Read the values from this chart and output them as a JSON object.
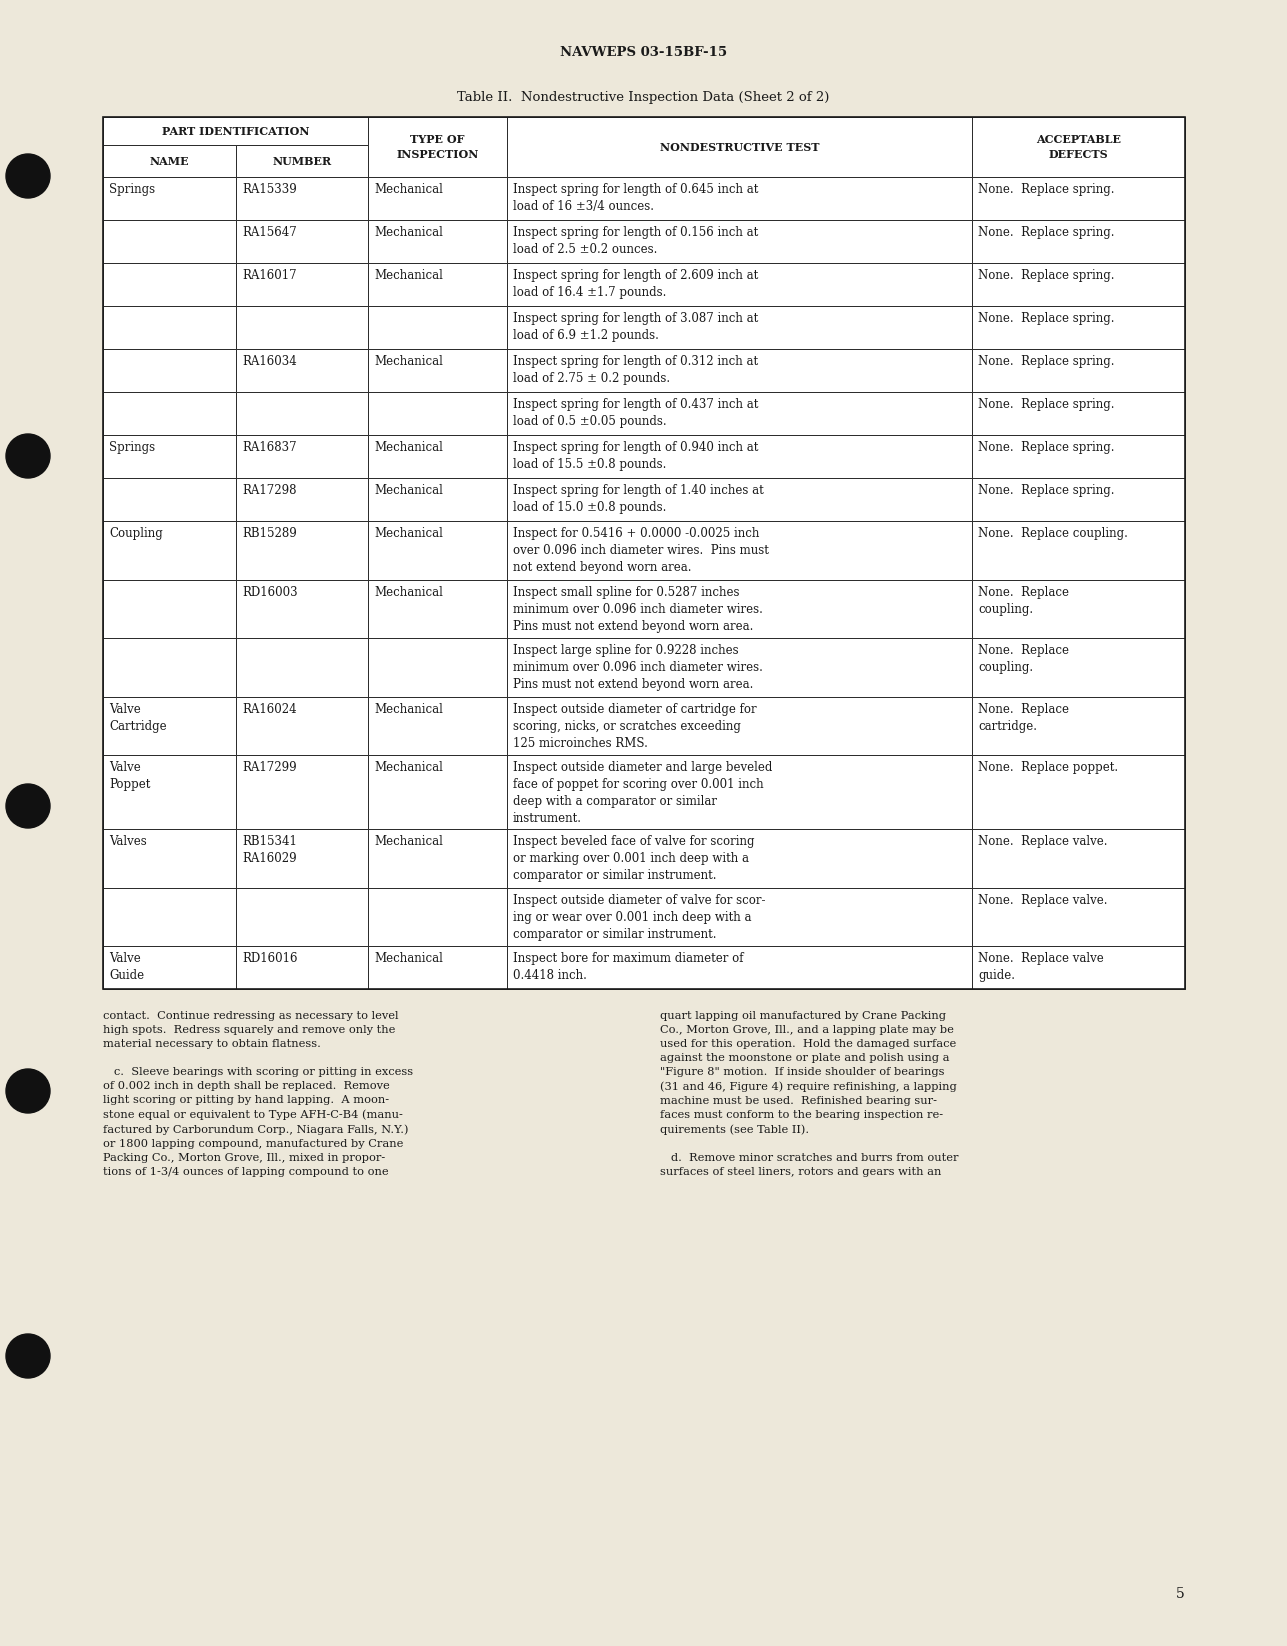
{
  "page_header": "NAVWEPS 03-15BF-15",
  "table_title": "Table II.  Nondestructive Inspection Data (Sheet 2 of 2)",
  "bg_color": "#ede8da",
  "text_color": "#1a1a1a",
  "rows": [
    {
      "name": "Springs",
      "number": "RA15339",
      "inspection": "Mechanical",
      "test": "Inspect spring for length of 0.645 inch at\nload of 16 ±3/4 ounces.",
      "defects": "None.  Replace spring."
    },
    {
      "name": "",
      "number": "RA15647",
      "inspection": "Mechanical",
      "test": "Inspect spring for length of 0.156 inch at\nload of 2.5 ±0.2 ounces.",
      "defects": "None.  Replace spring."
    },
    {
      "name": "",
      "number": "RA16017",
      "inspection": "Mechanical",
      "test": "Inspect spring for length of 2.609 inch at\nload of 16.4 ±1.7 pounds.",
      "defects": "None.  Replace spring."
    },
    {
      "name": "",
      "number": "",
      "inspection": "",
      "test": "Inspect spring for length of 3.087 inch at\nload of 6.9 ±1.2 pounds.",
      "defects": "None.  Replace spring."
    },
    {
      "name": "",
      "number": "RA16034",
      "inspection": "Mechanical",
      "test": "Inspect spring for length of 0.312 inch at\nload of 2.75 ± 0.2 pounds.",
      "defects": "None.  Replace spring."
    },
    {
      "name": "",
      "number": "",
      "inspection": "",
      "test": "Inspect spring for length of 0.437 inch at\nload of 0.5 ±0.05 pounds.",
      "defects": "None.  Replace spring."
    },
    {
      "name": "Springs",
      "number": "RA16837",
      "inspection": "Mechanical",
      "test": "Inspect spring for length of 0.940 inch at\nload of 15.5 ±0.8 pounds.",
      "defects": "None.  Replace spring."
    },
    {
      "name": "",
      "number": "RA17298",
      "inspection": "Mechanical",
      "test": "Inspect spring for length of 1.40 inches at\nload of 15.0 ±0.8 pounds.",
      "defects": "None.  Replace spring."
    },
    {
      "name": "Coupling",
      "number": "RB15289",
      "inspection": "Mechanical",
      "test": "Inspect for 0.5416 + 0.0000 -0.0025 inch\nover 0.096 inch diameter wires.  Pins must\nnot extend beyond worn area.",
      "defects": "None.  Replace coupling."
    },
    {
      "name": "",
      "number": "RD16003",
      "inspection": "Mechanical",
      "test": "Inspect small spline for 0.5287 inches\nminimum over 0.096 inch diameter wires.\nPins must not extend beyond worn area.",
      "defects": "None.  Replace\ncoupling."
    },
    {
      "name": "",
      "number": "",
      "inspection": "",
      "test": "Inspect large spline for 0.9228 inches\nminimum over 0.096 inch diameter wires.\nPins must not extend beyond worn area.",
      "defects": "None.  Replace\ncoupling."
    },
    {
      "name": "Valve\nCartridge",
      "number": "RA16024",
      "inspection": "Mechanical",
      "test": "Inspect outside diameter of cartridge for\nscoring, nicks, or scratches exceeding\n125 microinches RMS.",
      "defects": "None.  Replace\ncartridge."
    },
    {
      "name": "Valve\nPoppet",
      "number": "RA17299",
      "inspection": "Mechanical",
      "test": "Inspect outside diameter and large beveled\nface of poppet for scoring over 0.001 inch\ndeep with a comparator or similar\ninstrument.",
      "defects": "None.  Replace poppet."
    },
    {
      "name": "Valves",
      "number": "RB15341\nRA16029",
      "inspection": "Mechanical",
      "test": "Inspect beveled face of valve for scoring\nor marking over 0.001 inch deep with a\ncomparator or similar instrument.",
      "defects": "None.  Replace valve."
    },
    {
      "name": "",
      "number": "",
      "inspection": "",
      "test": "Inspect outside diameter of valve for scor-\ning or wear over 0.001 inch deep with a\ncomparator or similar instrument.",
      "defects": "None.  Replace valve."
    },
    {
      "name": "Valve\nGuide",
      "number": "RD16016",
      "inspection": "Mechanical",
      "test": "Inspect bore for maximum diameter of\n0.4418 inch.",
      "defects": "None.  Replace valve\nguide."
    }
  ],
  "footer_left": "contact.  Continue redressing as necessary to level\nhigh spots.  Redress squarely and remove only the\nmaterial necessary to obtain flatness.\n\n   c.  Sleeve bearings with scoring or pitting in excess\nof 0.002 inch in depth shall be replaced.  Remove\nlight scoring or pitting by hand lapping.  A moon-\nstone equal or equivalent to Type AFH-C-B4 (manu-\nfactured by Carborundum Corp., Niagara Falls, N.Y.)\nor 1800 lapping compound, manufactured by Crane\nPacking Co., Morton Grove, Ill., mixed in propor-\ntions of 1-3/4 ounces of lapping compound to one",
  "footer_right": "quart lapping oil manufactured by Crane Packing\nCo., Morton Grove, Ill., and a lapping plate may be\nused for this operation.  Hold the damaged surface\nagainst the moonstone or plate and polish using a\n\"Figure 8\" motion.  If inside shoulder of bearings\n(31 and 46, Figure 4) require refinishing, a lapping\nmachine must be used.  Refinished bearing sur-\nfaces must conform to the bearing inspection re-\nquirements (see Table II).\n\n   d.  Remove minor scratches and burrs from outer\nsurfaces of steel liners, rotors and gears with an",
  "page_number": "5",
  "hole_y": [
    1470,
    1190,
    840,
    555,
    290
  ]
}
